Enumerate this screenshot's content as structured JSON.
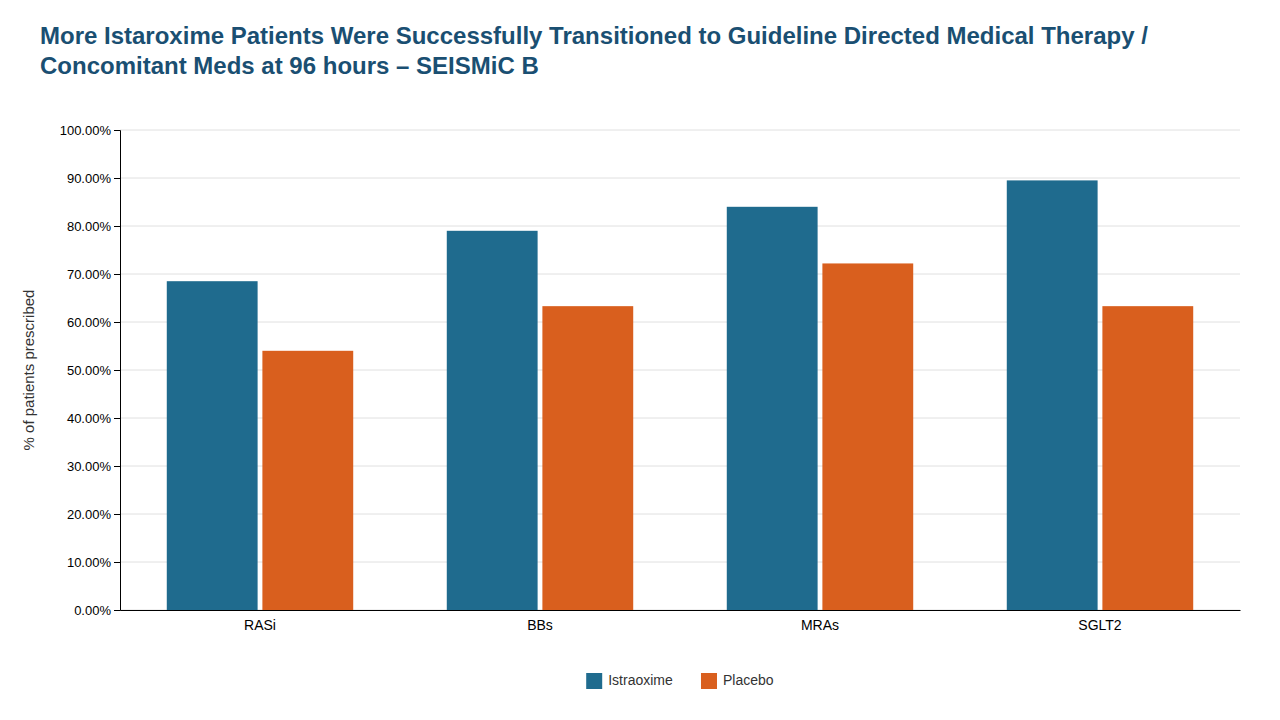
{
  "chart_data": {
    "type": "bar",
    "title": "More Istaroxime Patients Were Successfully Transitioned to Guideline Directed Medical Therapy / Concomitant Meds at 96 hours – SEISMiC B",
    "y_label": "% of patients prescribed",
    "categories": [
      "RASi",
      "BBs",
      "MRAs",
      "SGLT2"
    ],
    "series": [
      {
        "name": "Istraoxime",
        "color": "#1f6b8e",
        "values": [
          0.685,
          0.79,
          0.84,
          0.895
        ]
      },
      {
        "name": "Placebo",
        "color": "#d95f1e",
        "values": [
          0.54,
          0.633,
          0.722,
          0.633
        ]
      }
    ],
    "ylim": [
      0,
      1.0
    ],
    "yticks": [
      {
        "value": 0.0,
        "label": "0.00%"
      },
      {
        "value": 0.1,
        "label": "10.00%"
      },
      {
        "value": 0.2,
        "label": "20.00%"
      },
      {
        "value": 0.3,
        "label": "30.00%"
      },
      {
        "value": 0.4,
        "label": "40.00%"
      },
      {
        "value": 0.5,
        "label": "50.00%"
      },
      {
        "value": 0.6,
        "label": "60.00%"
      },
      {
        "value": 0.7,
        "label": "70.00%"
      },
      {
        "value": 0.8,
        "label": "80.00%"
      },
      {
        "value": 0.9,
        "label": "90.00%"
      },
      {
        "value": 1.0,
        "label": "100.00%"
      }
    ],
    "grid": true,
    "legend": "bottom"
  }
}
